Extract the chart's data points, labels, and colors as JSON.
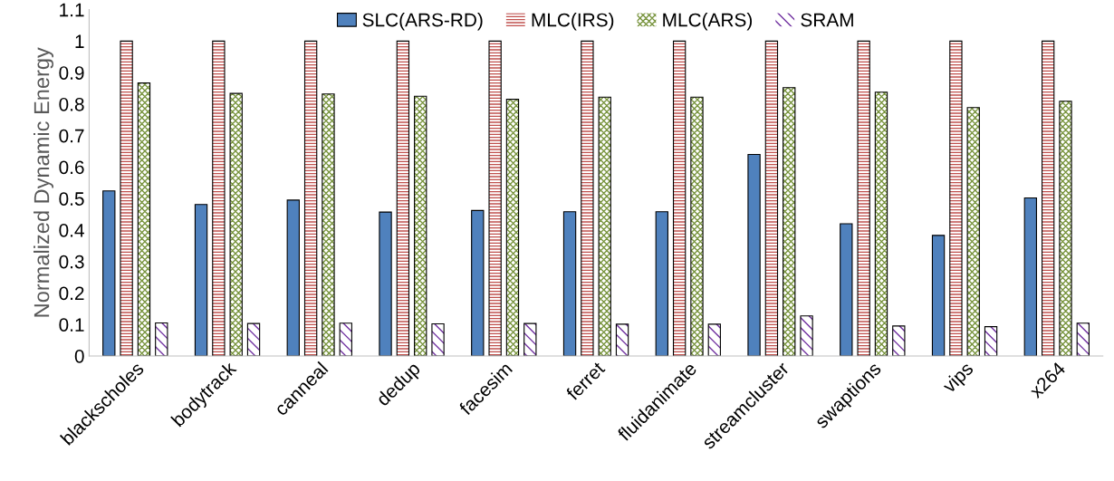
{
  "chart_data": {
    "type": "bar",
    "ylabel": "Normalized Dynamic Energy",
    "categories": [
      "blackscholes",
      "bodytrack",
      "canneal",
      "dedup",
      "facesim",
      "ferret",
      "fluidanimate",
      "streamcluster",
      "swaptions",
      "vips",
      "x264"
    ],
    "series": [
      {
        "name": "SLC(ARS-RD)",
        "color": "#4f81bd",
        "values": [
          0.524,
          0.481,
          0.495,
          0.457,
          0.462,
          0.458,
          0.458,
          0.64,
          0.42,
          0.383,
          0.502
        ]
      },
      {
        "name": "MLC(IRS)",
        "color": "#c0504d",
        "values": [
          1,
          1,
          1,
          1,
          1,
          1,
          1,
          1,
          1,
          1,
          1
        ]
      },
      {
        "name": "MLC(ARS)",
        "color": "#77933c",
        "values": [
          0.867,
          0.834,
          0.832,
          0.825,
          0.815,
          0.822,
          0.822,
          0.852,
          0.838,
          0.789,
          0.809
        ]
      },
      {
        "name": "SRAM",
        "color": "#7030a0",
        "values": [
          0.105,
          0.103,
          0.104,
          0.102,
          0.103,
          0.101,
          0.101,
          0.127,
          0.095,
          0.093,
          0.104
        ]
      }
    ],
    "ylim": [
      0,
      1.1
    ],
    "yticks": [
      0,
      0.1,
      0.2,
      0.3,
      0.4,
      0.5,
      0.6,
      0.7,
      0.8,
      0.9,
      1,
      1.1
    ],
    "grid": false,
    "legend": "top"
  }
}
